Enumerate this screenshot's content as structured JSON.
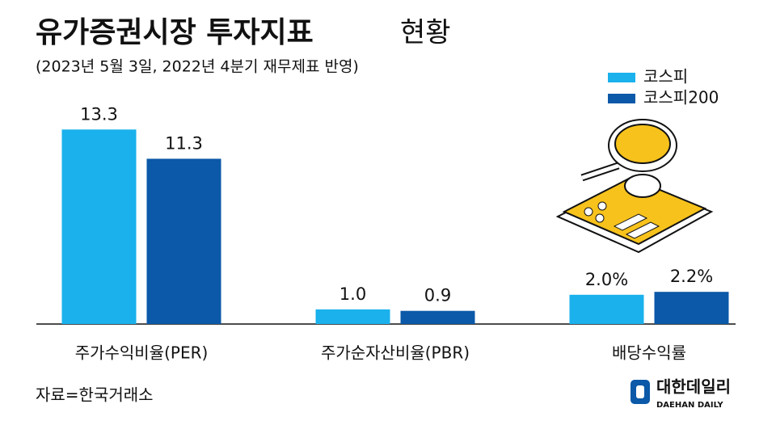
{
  "header": {
    "title": "유가증권시장 투자지표",
    "title_suffix": "현황",
    "subtitle": "(2023년 5월 3일, 2022년 4분기 재무제표 반영)"
  },
  "chart_data": {
    "type": "bar",
    "categories": [
      "주가수익비율(PER)",
      "주가순자산비율(PBR)",
      "배당수익률"
    ],
    "series": [
      {
        "name": "코스피",
        "color": "#1ab1ec",
        "values": [
          13.3,
          1.0,
          2.0
        ],
        "value_labels": [
          "13.3",
          "1.0",
          "2.0%"
        ]
      },
      {
        "name": "코스피200",
        "color": "#0b59a8",
        "values": [
          11.3,
          0.9,
          2.2
        ],
        "value_labels": [
          "11.3",
          "0.9",
          "2.2%"
        ]
      }
    ],
    "legend": "top-right"
  },
  "footer": {
    "source": "자료=한국거래소",
    "logo": "대한데일리",
    "logo_sub": "DAEHAN DAILY"
  }
}
